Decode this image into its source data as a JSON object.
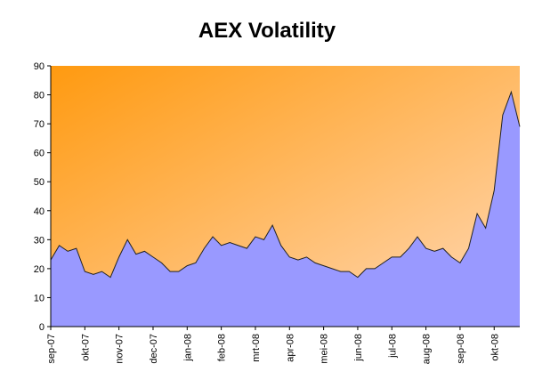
{
  "chart_data": {
    "type": "area",
    "title": "AEX Volatility",
    "categories": [
      "sep-07",
      null,
      null,
      null,
      "okt-07",
      null,
      null,
      null,
      "nov-07",
      null,
      null,
      null,
      "dec-07",
      null,
      null,
      null,
      "jan-08",
      null,
      null,
      null,
      "feb-08",
      null,
      null,
      null,
      "mrt-08",
      null,
      null,
      null,
      "apr-08",
      null,
      null,
      null,
      "mei-08",
      null,
      null,
      null,
      "jun-08",
      null,
      null,
      null,
      "jul-08",
      null,
      null,
      null,
      "aug-08",
      null,
      null,
      null,
      "sep-08",
      null,
      null,
      null,
      "okt-08",
      null,
      null,
      null
    ],
    "values": [
      23,
      28,
      26,
      27,
      19,
      18,
      19,
      17,
      24,
      30,
      25,
      26,
      24,
      22,
      19,
      19,
      21,
      22,
      27,
      31,
      28,
      29,
      28,
      27,
      31,
      30,
      35,
      28,
      24,
      23,
      24,
      22,
      21,
      20,
      19,
      19,
      17,
      20,
      20,
      22,
      24,
      24,
      27,
      31,
      27,
      26,
      27,
      24,
      22,
      27,
      39,
      34,
      47,
      73,
      81,
      69
    ],
    "color": "#9999ff",
    "line_color": "#222222",
    "ylim": [
      0,
      90
    ],
    "yticks": [
      0,
      10,
      20,
      30,
      40,
      50,
      60,
      70,
      80,
      90
    ]
  }
}
